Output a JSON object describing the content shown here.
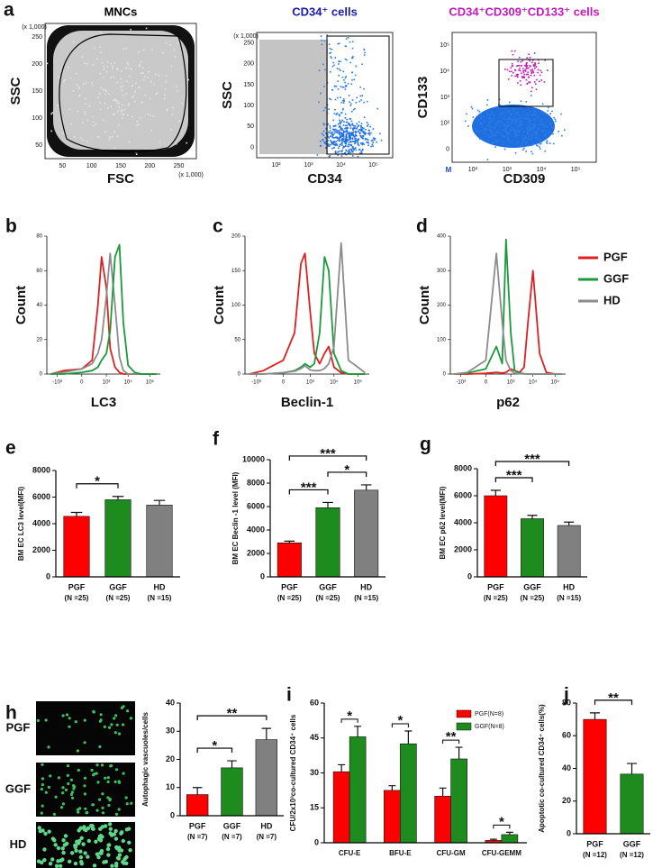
{
  "flow_panel": {
    "panel": "a",
    "plots": [
      {
        "title": "MNCs",
        "title_color": "#000000",
        "x_label": "FSC",
        "y_label": "SSC",
        "x_ticks": [
          50,
          100,
          150,
          200,
          250
        ],
        "y_ticks": [
          50,
          100,
          150,
          200,
          250
        ],
        "x_scale": "(x 1,000)",
        "y_scale": "(x 1,000)"
      },
      {
        "title": "CD34⁺ cells",
        "title_color": "#1a1aa6",
        "x_label": "CD34",
        "y_label": "SSC",
        "x_ticks": [
          "10²",
          "10³",
          "10⁴",
          "10⁵"
        ],
        "y_ticks": [
          0,
          50,
          100,
          150,
          200,
          250
        ],
        "y_scale": "(x 1,000)"
      },
      {
        "title": "CD34⁺CD309⁺CD133⁺ cells",
        "title_color": "#c21ab8",
        "x_label": "CD309",
        "y_label": "CD133",
        "x_ticks": [
          "10²",
          "10³",
          "10⁴",
          "10⁵"
        ],
        "y_ticks": [
          "0",
          "10²",
          "10³",
          "10⁴",
          "10⁵"
        ],
        "corner_label": "M"
      }
    ]
  },
  "image_panel": {
    "panel": "h",
    "labels": [
      "PGF",
      "GGF",
      "HD"
    ]
  },
  "chart_data": [
    {
      "type": "line",
      "panel": "b",
      "x_label": "LC3",
      "y_label": "Count",
      "x_scale": "biexponential",
      "x": [
        -2000,
        -500,
        0,
        200,
        400,
        600,
        1000,
        1500,
        2500,
        4000,
        6000,
        10000,
        20000,
        40000,
        100000,
        200000
      ],
      "xlim": [
        -3000,
        300000
      ],
      "xticks": [
        {
          "value": -1000,
          "label": "-10³"
        },
        0,
        {
          "value": 1000,
          "label": "10³"
        },
        {
          "value": 10000,
          "label": "10⁴"
        },
        {
          "value": 100000,
          "label": "10⁵"
        }
      ],
      "ylim": [
        0,
        80
      ],
      "yticks": [
        0,
        20,
        40,
        60,
        80
      ],
      "series": [
        {
          "color": "#e02020",
          "values": [
            0,
            2,
            3,
            8,
            40,
            68,
            50,
            15,
            4,
            1,
            0,
            0,
            0,
            0,
            0,
            0
          ]
        },
        {
          "color": "#8c8c8c",
          "values": [
            0,
            1,
            3,
            6,
            12,
            20,
            45,
            70,
            40,
            10,
            2,
            0,
            0,
            0,
            0,
            0
          ]
        },
        {
          "color": "#1a9a3a",
          "values": [
            0,
            0,
            1,
            2,
            4,
            8,
            12,
            25,
            68,
            75,
            30,
            5,
            1,
            0,
            0,
            0
          ]
        }
      ]
    },
    {
      "type": "line",
      "panel": "c",
      "x_label": "Beclin-1",
      "y_label": "Count",
      "x_scale": "biexponential",
      "x": [
        -2000,
        -500,
        0,
        200,
        400,
        600,
        1000,
        1500,
        2500,
        4000,
        6000,
        10000,
        20000,
        40000,
        100000,
        200000
      ],
      "xlim": [
        -3000,
        300000
      ],
      "xticks": [
        {
          "value": -1000,
          "label": "-10³"
        },
        0,
        {
          "value": 1000,
          "label": "10³"
        },
        {
          "value": 10000,
          "label": "10⁴"
        },
        {
          "value": 100000,
          "label": "10⁵"
        }
      ],
      "ylim": [
        0,
        200
      ],
      "yticks": [
        0,
        50,
        100,
        150,
        200
      ],
      "series": [
        {
          "color": "#e02020",
          "values": [
            0,
            5,
            20,
            60,
            160,
            175,
            90,
            30,
            15,
            30,
            40,
            10,
            2,
            0,
            0,
            0
          ]
        },
        {
          "color": "#1a9a3a",
          "values": [
            0,
            0,
            2,
            5,
            10,
            15,
            10,
            15,
            60,
            170,
            150,
            30,
            5,
            0,
            0,
            0
          ]
        },
        {
          "color": "#8c8c8c",
          "values": [
            0,
            0,
            2,
            4,
            8,
            12,
            6,
            5,
            5,
            8,
            15,
            40,
            190,
            20,
            10,
            2
          ]
        }
      ]
    },
    {
      "type": "line",
      "panel": "d",
      "x_label": "p62",
      "y_label": "Count",
      "x_scale": "biexponential",
      "legend": "right",
      "x": [
        -2000,
        -500,
        0,
        200,
        400,
        600,
        1000,
        1500,
        2500,
        4000,
        6000,
        10000,
        20000,
        40000,
        100000,
        200000
      ],
      "xlim": [
        -3000,
        300000
      ],
      "xticks": [
        {
          "value": -1000,
          "label": "-10³"
        },
        0,
        {
          "value": 1000,
          "label": "10³"
        },
        {
          "value": 10000,
          "label": "10⁴"
        },
        {
          "value": 100000,
          "label": "10⁵"
        }
      ],
      "ylim": [
        0,
        400
      ],
      "yticks": [
        0,
        100,
        200,
        300,
        400
      ],
      "series": [
        {
          "name": "PGF",
          "color": "#e02020",
          "values": [
            0,
            0,
            2,
            5,
            3,
            5,
            15,
            10,
            5,
            20,
            150,
            300,
            60,
            5,
            0,
            0
          ]
        },
        {
          "name": "GGF",
          "color": "#1a9a3a",
          "values": [
            0,
            3,
            15,
            80,
            30,
            390,
            120,
            10,
            3,
            1,
            0,
            0,
            0,
            0,
            0,
            0
          ]
        },
        {
          "name": "HD",
          "color": "#8c8c8c",
          "values": [
            0,
            5,
            40,
            350,
            150,
            40,
            10,
            3,
            1,
            0,
            0,
            0,
            0,
            0,
            0,
            0
          ]
        }
      ]
    },
    {
      "type": "bar",
      "panel": "e",
      "y_label": "BM EC LC3 level(MFI)",
      "categories": [
        "PGF",
        "GGF",
        "HD"
      ],
      "n_labels": [
        "(N =25)",
        "(N =25)",
        "(N =15)"
      ],
      "ylim": [
        0,
        8000
      ],
      "yticks": [
        0,
        2000,
        4000,
        6000,
        8000
      ],
      "series": [
        {
          "colors": [
            "#ff0000",
            "#1e8b1e",
            "#808080"
          ],
          "values": [
            4550,
            5800,
            5400
          ],
          "errors": [
            300,
            250,
            350
          ]
        }
      ],
      "significance": [
        {
          "between": [
            0,
            1
          ],
          "label": "*"
        }
      ]
    },
    {
      "type": "bar",
      "panel": "f",
      "y_label": "BM EC Beclin -1 level (MFI)",
      "categories": [
        "PGF",
        "GGF",
        "HD"
      ],
      "n_labels": [
        "(N =25)",
        "(N =25)",
        "(N =15)"
      ],
      "ylim": [
        0,
        10000
      ],
      "yticks": [
        0,
        2000,
        4000,
        6000,
        8000,
        10000
      ],
      "series": [
        {
          "colors": [
            "#ff0000",
            "#1e8b1e",
            "#808080"
          ],
          "values": [
            2900,
            5900,
            7400
          ],
          "errors": [
            150,
            450,
            450
          ]
        }
      ],
      "significance": [
        {
          "between": [
            0,
            1
          ],
          "label": "***"
        },
        {
          "between": [
            1,
            2
          ],
          "label": "*"
        },
        {
          "between": [
            0,
            2
          ],
          "label": "***"
        }
      ]
    },
    {
      "type": "bar",
      "panel": "g",
      "y_label": "BM EC p62 level(MFI)",
      "categories": [
        "PGF",
        "GGF",
        "HD"
      ],
      "n_labels": [
        "(N =25)",
        "(N =25)",
        "(N =15)"
      ],
      "ylim": [
        0,
        8000
      ],
      "yticks": [
        0,
        2000,
        4000,
        6000,
        8000
      ],
      "series": [
        {
          "colors": [
            "#ff0000",
            "#1e8b1e",
            "#808080"
          ],
          "values": [
            6000,
            4300,
            3800
          ],
          "errors": [
            400,
            250,
            250
          ]
        }
      ],
      "significance": [
        {
          "between": [
            0,
            1
          ],
          "label": "***"
        },
        {
          "between": [
            0,
            2
          ],
          "label": "***"
        }
      ]
    },
    {
      "type": "bar",
      "y_label": "Autophagic vascuoles/cells",
      "categories": [
        "PGF",
        "GGF",
        "HD"
      ],
      "n_labels": [
        "(N =7)",
        "(N =7)",
        "(N =7)"
      ],
      "ylim": [
        0,
        40
      ],
      "yticks": [
        0,
        10,
        20,
        30,
        40
      ],
      "series": [
        {
          "colors": [
            "#ff0000",
            "#1e8b1e",
            "#808080"
          ],
          "values": [
            7.5,
            17,
            27
          ],
          "errors": [
            2.5,
            2.5,
            4
          ]
        }
      ],
      "significance": [
        {
          "between": [
            0,
            1
          ],
          "label": "*"
        },
        {
          "between": [
            0,
            2
          ],
          "label": "**"
        }
      ]
    },
    {
      "type": "bar",
      "panel": "i",
      "y_label": "CFU/2x10³co-cultured CD34⁺ cells",
      "legend": "upper right",
      "categories": [
        "CFU-E",
        "BFU-E",
        "CFU-GM",
        "CFU-GEMM"
      ],
      "ylim": [
        0,
        60
      ],
      "yticks": [
        0,
        15,
        30,
        45,
        60
      ],
      "series": [
        {
          "name": "PGF(N=8)",
          "color": "#ff0000",
          "values": [
            30.5,
            22.5,
            20,
            1
          ],
          "errors": [
            3,
            2,
            3.5,
            0.5
          ]
        },
        {
          "name": "GGF(N=8)",
          "color": "#1e8b1e",
          "values": [
            45.5,
            42.5,
            36,
            3.5
          ],
          "errors": [
            4.5,
            5.5,
            5,
            1
          ]
        }
      ],
      "significance": [
        {
          "category": 0,
          "label": "*"
        },
        {
          "category": 1,
          "label": "*"
        },
        {
          "category": 2,
          "label": "**"
        },
        {
          "category": 3,
          "label": "*"
        }
      ]
    },
    {
      "type": "bar",
      "panel": "j",
      "y_label": "Apoptotic co-cultured CD34⁺ cells(%)",
      "categories": [
        "PGF",
        "GGF"
      ],
      "n_labels": [
        "(N =12)",
        "(N =12)"
      ],
      "ylim": [
        0,
        80
      ],
      "yticks": [
        0,
        20,
        40,
        60,
        80
      ],
      "series": [
        {
          "colors": [
            "#ff0000",
            "#1e8b1e"
          ],
          "values": [
            70,
            36.5
          ],
          "errors": [
            4,
            6.5
          ]
        }
      ],
      "significance": [
        {
          "between": [
            0,
            1
          ],
          "label": "**"
        }
      ]
    }
  ]
}
